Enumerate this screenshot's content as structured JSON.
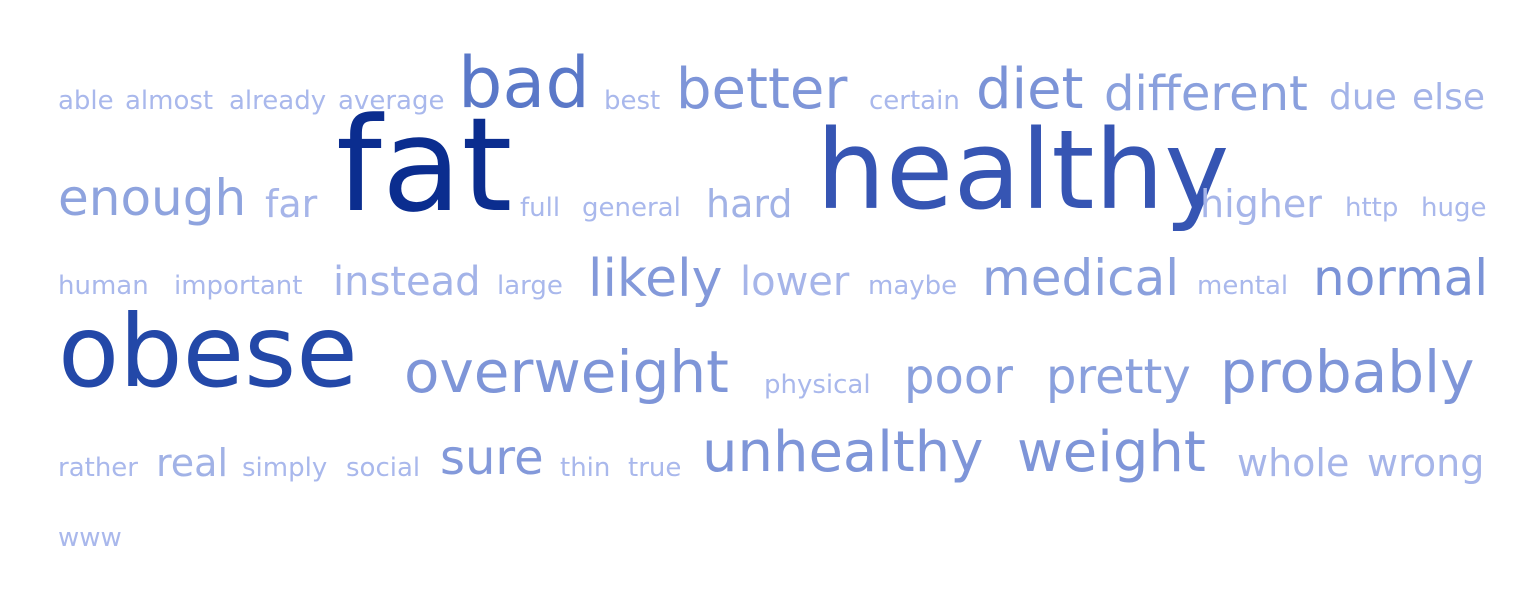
{
  "words": [
    {
      "text": "able",
      "weight": 1
    },
    {
      "text": "almost",
      "weight": 1
    },
    {
      "text": "already",
      "weight": 1
    },
    {
      "text": "average",
      "weight": 1
    },
    {
      "text": "bad",
      "weight": 6
    },
    {
      "text": "best",
      "weight": 1
    },
    {
      "text": "better",
      "weight": 4
    },
    {
      "text": "certain",
      "weight": 1
    },
    {
      "text": "diet",
      "weight": 4
    },
    {
      "text": "different",
      "weight": 3
    },
    {
      "text": "due",
      "weight": 2
    },
    {
      "text": "else",
      "weight": 2
    },
    {
      "text": "enough",
      "weight": 3
    },
    {
      "text": "far",
      "weight": 2
    },
    {
      "text": "fat",
      "weight": 10
    },
    {
      "text": "full",
      "weight": 1
    },
    {
      "text": "general",
      "weight": 1
    },
    {
      "text": "hard",
      "weight": 2
    },
    {
      "text": "healthy",
      "weight": 9
    },
    {
      "text": "higher",
      "weight": 2
    },
    {
      "text": "http",
      "weight": 1
    },
    {
      "text": "huge",
      "weight": 1
    },
    {
      "text": "human",
      "weight": 1
    },
    {
      "text": "important",
      "weight": 1
    },
    {
      "text": "instead",
      "weight": 2
    },
    {
      "text": "large",
      "weight": 1
    },
    {
      "text": "likely",
      "weight": 3
    },
    {
      "text": "lower",
      "weight": 2
    },
    {
      "text": "maybe",
      "weight": 1
    },
    {
      "text": "medical",
      "weight": 3
    },
    {
      "text": "mental",
      "weight": 1
    },
    {
      "text": "normal",
      "weight": 3
    },
    {
      "text": "obese",
      "weight": 8
    },
    {
      "text": "overweight",
      "weight": 4
    },
    {
      "text": "physical",
      "weight": 1
    },
    {
      "text": "poor",
      "weight": 3
    },
    {
      "text": "pretty",
      "weight": 3
    },
    {
      "text": "probably",
      "weight": 4
    },
    {
      "text": "rather",
      "weight": 1
    },
    {
      "text": "real",
      "weight": 2
    },
    {
      "text": "simply",
      "weight": 1
    },
    {
      "text": "social",
      "weight": 1
    },
    {
      "text": "sure",
      "weight": 3
    },
    {
      "text": "thin",
      "weight": 1
    },
    {
      "text": "true",
      "weight": 1
    },
    {
      "text": "unhealthy",
      "weight": 4
    },
    {
      "text": "weight",
      "weight": 4
    },
    {
      "text": "whole",
      "weight": 2
    },
    {
      "text": "wrong",
      "weight": 2
    },
    {
      "text": "www",
      "weight": 1
    }
  ]
}
